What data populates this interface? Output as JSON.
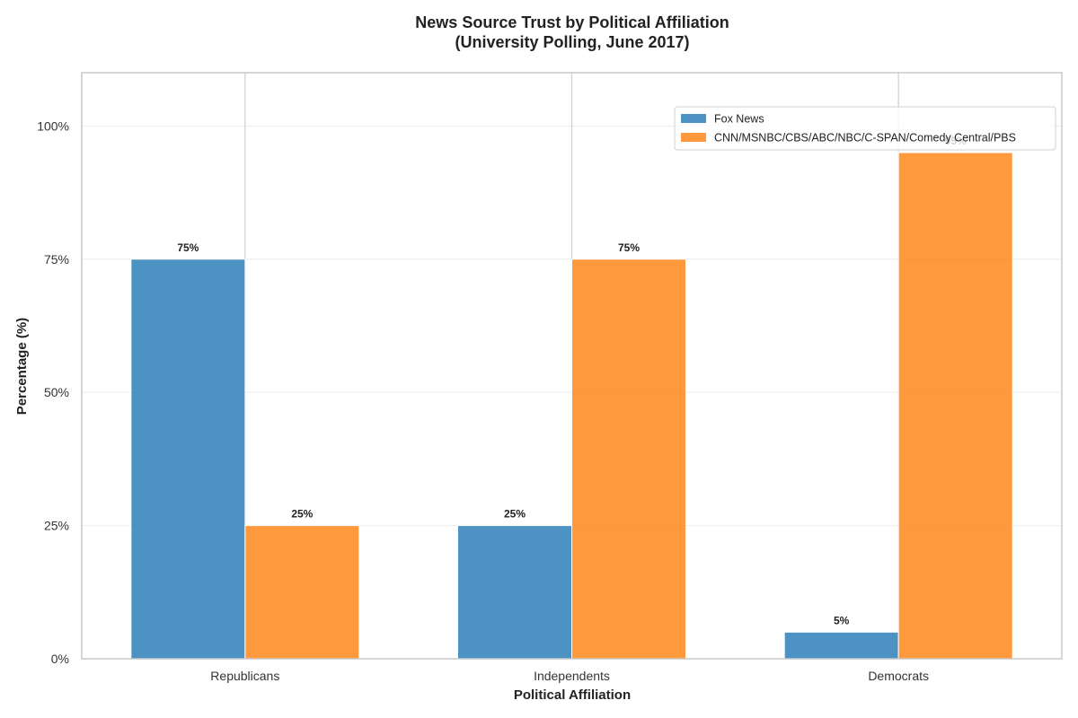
{
  "chart_data": {
    "type": "bar",
    "title": "News Source Trust by Political Affiliation",
    "subtitle": "(University Polling, June 2017)",
    "xlabel": "Political Affiliation",
    "ylabel": "Percentage (%)",
    "categories": [
      "Republicans",
      "Independents",
      "Democrats"
    ],
    "series": [
      {
        "name": "Fox News",
        "values": [
          75,
          25,
          5
        ],
        "color": "#1f77b4"
      },
      {
        "name": "CNN/MSNBC/CBS/ABC/NBC/C-SPAN/Comedy Central/PBS",
        "values": [
          25,
          75,
          95
        ],
        "color": "#ff7f0e"
      }
    ],
    "data_labels": [
      [
        "75%",
        "25%",
        "5%"
      ],
      [
        "25%",
        "75%",
        "95%"
      ]
    ],
    "ylim": [
      0,
      110
    ],
    "yticks": [
      0,
      25,
      50,
      75,
      100
    ],
    "ytick_labels": [
      "0%",
      "25%",
      "50%",
      "75%",
      "100%"
    ],
    "grid": true,
    "legend_position": "top-right"
  }
}
